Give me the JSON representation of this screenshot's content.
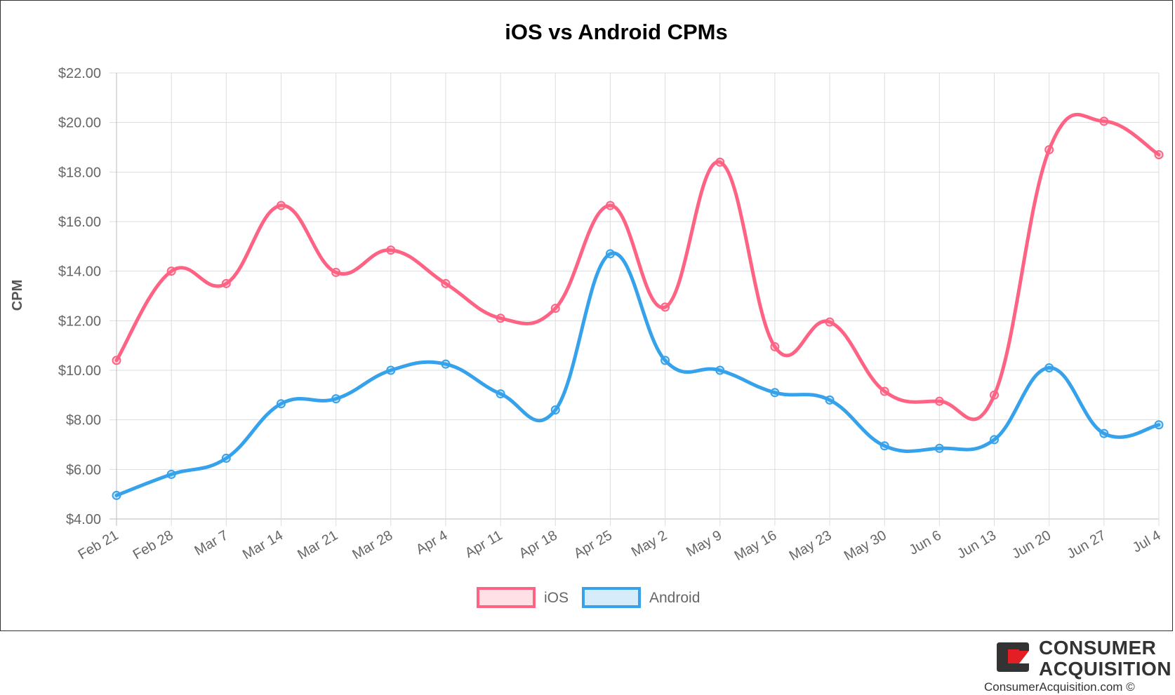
{
  "chart_data": {
    "type": "line",
    "title": "iOS vs Android CPMs",
    "xlabel": "",
    "ylabel": "CPM",
    "categories": [
      "Feb 21",
      "Feb 28",
      "Mar 7",
      "Mar 14",
      "Mar 21",
      "Mar 28",
      "Apr 4",
      "Apr 11",
      "Apr 18",
      "Apr 25",
      "May 2",
      "May 9",
      "May 16",
      "May 23",
      "May 30",
      "Jun 6",
      "Jun 13",
      "Jun 20",
      "Jun 27",
      "Jul 4"
    ],
    "ylim": [
      4,
      22
    ],
    "yticks": [
      "$4.00",
      "$6.00",
      "$8.00",
      "$10.00",
      "$12.00",
      "$14.00",
      "$16.00",
      "$18.00",
      "$20.00",
      "$22.00"
    ],
    "grid": true,
    "legend_position": "bottom",
    "series": [
      {
        "name": "iOS",
        "color": "#ff6384",
        "values": [
          10.4,
          14.0,
          13.5,
          16.65,
          13.95,
          14.85,
          13.5,
          12.1,
          12.5,
          16.65,
          12.55,
          18.4,
          10.95,
          11.95,
          9.15,
          8.75,
          9.0,
          18.9,
          20.05,
          18.7
        ]
      },
      {
        "name": "Android",
        "color": "#36a2eb",
        "values": [
          4.95,
          5.8,
          6.45,
          8.65,
          8.85,
          10.0,
          10.25,
          9.05,
          8.4,
          14.7,
          10.4,
          10.0,
          9.1,
          8.8,
          6.95,
          6.85,
          7.2,
          10.1,
          7.45,
          7.8
        ]
      }
    ]
  },
  "brand": {
    "name_line1": "CONSUMER",
    "name_line2": "ACQUISITION",
    "url": "ConsumerAcquisition.com ©",
    "logo_dark": "#333333",
    "logo_accent": "#e31e24"
  }
}
